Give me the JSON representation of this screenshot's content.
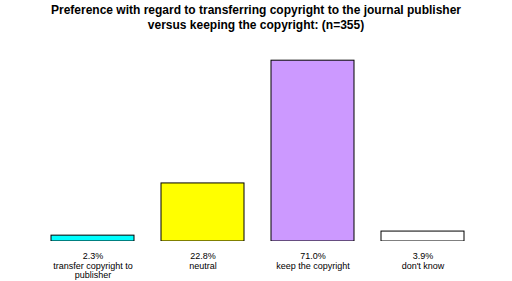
{
  "chart_data": {
    "type": "bar",
    "title": "Preference with regard to transferring copyright to the journal publisher versus keeping the copyright: (n=355)",
    "categories": [
      "transfer copyright to publisher",
      "neutral",
      "keep the copyright",
      "don't know"
    ],
    "values": [
      2.3,
      22.8,
      71.0,
      3.9
    ],
    "value_labels": [
      "2.3%",
      "22.8%",
      "71.0%",
      "3.9%"
    ],
    "colors": [
      "#00ffff",
      "#ffff00",
      "#cc99ff",
      "#ffffff"
    ],
    "ylim": [
      0,
      75
    ],
    "data_labels": true,
    "tick_labels": "x",
    "grid": false
  }
}
